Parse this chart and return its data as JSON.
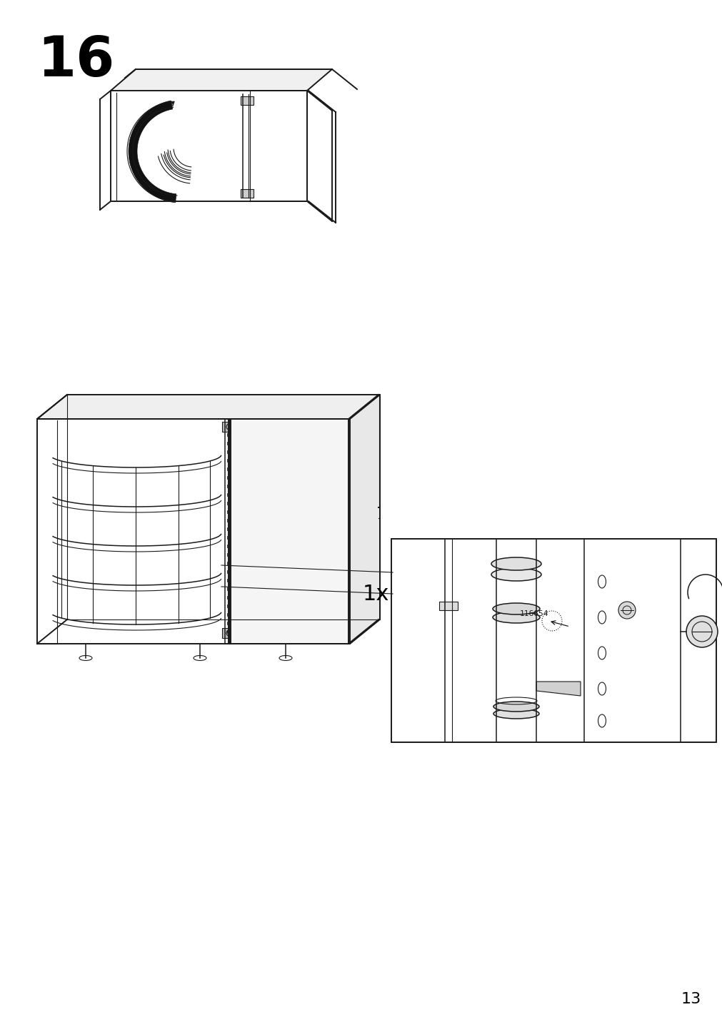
{
  "page_number": "13",
  "step_number": "16",
  "quantity_label": "1x",
  "part_number": "116654",
  "background_color": "#ffffff",
  "line_color": "#1a1a1a",
  "step_font_size": 56,
  "page_font_size": 16,
  "lw_main": 1.4,
  "lw_thin": 0.8,
  "lw_thick": 2.0,
  "lw_med": 1.1
}
